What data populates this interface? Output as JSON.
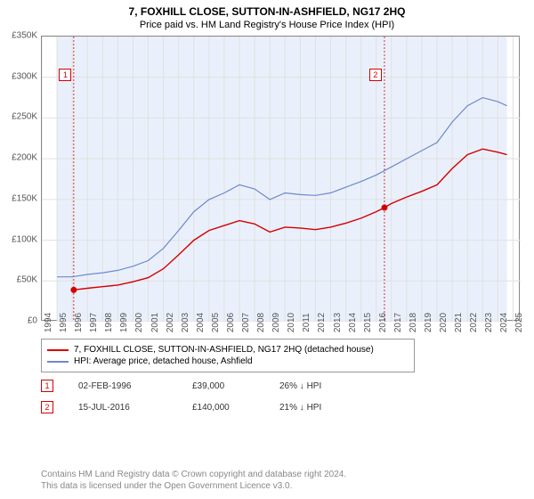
{
  "title": "7, FOXHILL CLOSE, SUTTON-IN-ASHFIELD, NG17 2HQ",
  "subtitle": "Price paid vs. HM Land Registry's House Price Index (HPI)",
  "chart": {
    "type": "line",
    "xlim": [
      1994,
      2025.5
    ],
    "ylim": [
      0,
      350000
    ],
    "ytick_step": 50000,
    "ytick_labels": [
      "£0",
      "£50K",
      "£100K",
      "£150K",
      "£200K",
      "£250K",
      "£300K",
      "£350K"
    ],
    "xtick_years": [
      1994,
      1995,
      1996,
      1997,
      1998,
      1999,
      2000,
      2001,
      2002,
      2003,
      2004,
      2005,
      2006,
      2007,
      2008,
      2009,
      2010,
      2011,
      2012,
      2013,
      2014,
      2015,
      2016,
      2017,
      2018,
      2019,
      2020,
      2021,
      2022,
      2023,
      2024,
      2025
    ],
    "plot_bg": "#eaf0fb",
    "plot_bg_span": [
      1995,
      2024.6
    ],
    "grid_color": "#e0e0e0",
    "border_color": "#888888",
    "series": [
      {
        "name": "HPI: Average price, detached house, Ashfield",
        "color": "#6c8aca",
        "width": 1.2,
        "data": [
          [
            1995.0,
            55000
          ],
          [
            1996.0,
            55000
          ],
          [
            1997.0,
            58000
          ],
          [
            1998.0,
            60000
          ],
          [
            1999.0,
            63000
          ],
          [
            2000.0,
            68000
          ],
          [
            2001.0,
            75000
          ],
          [
            2002.0,
            90000
          ],
          [
            2003.0,
            112000
          ],
          [
            2004.0,
            135000
          ],
          [
            2005.0,
            150000
          ],
          [
            2006.0,
            158000
          ],
          [
            2007.0,
            168000
          ],
          [
            2008.0,
            163000
          ],
          [
            2009.0,
            150000
          ],
          [
            2010.0,
            158000
          ],
          [
            2011.0,
            156000
          ],
          [
            2012.0,
            155000
          ],
          [
            2013.0,
            158000
          ],
          [
            2014.0,
            165000
          ],
          [
            2015.0,
            172000
          ],
          [
            2016.0,
            180000
          ],
          [
            2017.0,
            190000
          ],
          [
            2018.0,
            200000
          ],
          [
            2019.0,
            210000
          ],
          [
            2020.0,
            220000
          ],
          [
            2021.0,
            245000
          ],
          [
            2022.0,
            265000
          ],
          [
            2023.0,
            275000
          ],
          [
            2024.0,
            270000
          ],
          [
            2024.6,
            265000
          ]
        ]
      },
      {
        "name": "7, FOXHILL CLOSE, SUTTON-IN-ASHFIELD, NG17 2HQ (detached house)",
        "color": "#d40000",
        "width": 1.4,
        "data": [
          [
            1996.1,
            39000
          ],
          [
            1997.0,
            41000
          ],
          [
            1998.0,
            43000
          ],
          [
            1999.0,
            45000
          ],
          [
            2000.0,
            49000
          ],
          [
            2001.0,
            54000
          ],
          [
            2002.0,
            65000
          ],
          [
            2003.0,
            82000
          ],
          [
            2004.0,
            100000
          ],
          [
            2005.0,
            112000
          ],
          [
            2006.0,
            118000
          ],
          [
            2007.0,
            124000
          ],
          [
            2008.0,
            120000
          ],
          [
            2009.0,
            110000
          ],
          [
            2010.0,
            116000
          ],
          [
            2011.0,
            115000
          ],
          [
            2012.0,
            113000
          ],
          [
            2013.0,
            116000
          ],
          [
            2014.0,
            121000
          ],
          [
            2015.0,
            127000
          ],
          [
            2016.0,
            135000
          ],
          [
            2016.54,
            140000
          ],
          [
            2017.0,
            145000
          ],
          [
            2018.0,
            153000
          ],
          [
            2019.0,
            160000
          ],
          [
            2020.0,
            168000
          ],
          [
            2021.0,
            188000
          ],
          [
            2022.0,
            205000
          ],
          [
            2023.0,
            212000
          ],
          [
            2024.0,
            208000
          ],
          [
            2024.6,
            205000
          ]
        ]
      }
    ],
    "markers": [
      {
        "label": "1",
        "x": 1996.1,
        "y": 39000,
        "color": "#d40000",
        "box_x": 1995.2,
        "box_y": 310000
      },
      {
        "label": "2",
        "x": 2016.54,
        "y": 140000,
        "color": "#d40000",
        "box_x": 2015.6,
        "box_y": 310000
      }
    ]
  },
  "legend": {
    "items": [
      {
        "color": "#d40000",
        "label": "7, FOXHILL CLOSE, SUTTON-IN-ASHFIELD, NG17 2HQ (detached house)"
      },
      {
        "color": "#6c8aca",
        "label": "HPI: Average price, detached house, Ashfield"
      }
    ]
  },
  "footnotes": [
    {
      "marker": "1",
      "marker_color": "#d40000",
      "date": "02-FEB-1996",
      "price": "£39,000",
      "delta": "26% ↓ HPI"
    },
    {
      "marker": "2",
      "marker_color": "#d40000",
      "date": "15-JUL-2016",
      "price": "£140,000",
      "delta": "21% ↓ HPI"
    }
  ],
  "license_lines": [
    "Contains HM Land Registry data © Crown copyright and database right 2024.",
    "This data is licensed under the Open Government Licence v3.0."
  ]
}
